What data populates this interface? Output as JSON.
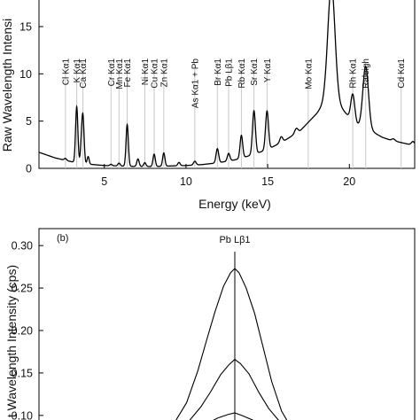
{
  "chart_data": [
    {
      "type": "line",
      "panel": "a",
      "xlabel": "Energy (keV)",
      "ylabel": "Raw Wavelength Intensi",
      "xlim": [
        1,
        24
      ],
      "ylim": [
        0,
        18
      ],
      "xticks": [
        5,
        10,
        15,
        20
      ],
      "yticks": [
        0,
        5,
        10,
        15
      ],
      "line_color": "#000000",
      "marker_color": "#c8c8c8",
      "element_lines": [
        {
          "label": "Cl Kα1",
          "energy": 2.62
        },
        {
          "label": "K Kα1",
          "energy": 3.31
        },
        {
          "label": "Ca Kα1",
          "energy": 3.69
        },
        {
          "label": "Cr Kα1",
          "energy": 5.41
        },
        {
          "label": "Mn Kα1",
          "energy": 5.9
        },
        {
          "label": "Fe Kα1",
          "energy": 6.4
        },
        {
          "label": "Ni Kα1",
          "energy": 7.48
        },
        {
          "label": "Cu Kα1",
          "energy": 8.05
        },
        {
          "label": "Zn Kα1",
          "energy": 8.64
        },
        {
          "label": "As Kα1 + Pb",
          "energy": 10.54
        },
        {
          "label": "Br Kα1",
          "energy": 11.92
        },
        {
          "label": "Pb Lβ1",
          "energy": 12.61
        },
        {
          "label": "Rb Kα1",
          "energy": 13.39
        },
        {
          "label": "Sr Kα1",
          "energy": 14.16
        },
        {
          "label": "Y Kα1",
          "energy": 14.96
        },
        {
          "label": "Mo Kα1",
          "energy": 17.48
        },
        {
          "label": "Rh Kα1",
          "energy": 20.21
        },
        {
          "label": "Raleigh",
          "energy": 21.0
        },
        {
          "label": "Cd Kα1",
          "energy": 23.17
        }
      ],
      "spectrum": {
        "baseline": [
          [
            1.0,
            1.7
          ],
          [
            1.5,
            1.4
          ],
          [
            2.0,
            1.1
          ],
          [
            2.5,
            0.9
          ],
          [
            3.0,
            0.7
          ],
          [
            4.0,
            0.45
          ],
          [
            5.0,
            0.3
          ],
          [
            6.0,
            0.25
          ],
          [
            7.0,
            0.2
          ],
          [
            8.0,
            0.2
          ],
          [
            9.0,
            0.25
          ],
          [
            10.0,
            0.3
          ],
          [
            11.0,
            0.4
          ],
          [
            12.0,
            0.6
          ],
          [
            13.0,
            0.9
          ],
          [
            14.0,
            1.4
          ],
          [
            15.0,
            2.0
          ],
          [
            16.0,
            2.9
          ],
          [
            17.0,
            4.0
          ],
          [
            18.0,
            5.8
          ],
          [
            18.5,
            7.0
          ],
          [
            19.0,
            7.4
          ],
          [
            19.5,
            6.4
          ],
          [
            20.0,
            5.4
          ],
          [
            20.5,
            4.6
          ],
          [
            21.0,
            4.2
          ],
          [
            21.5,
            3.8
          ],
          [
            22.0,
            3.3
          ],
          [
            22.5,
            3.0
          ],
          [
            23.0,
            2.8
          ],
          [
            23.5,
            2.6
          ],
          [
            24.0,
            2.4
          ]
        ],
        "peaks": [
          {
            "center": 2.62,
            "height": 0.2,
            "width": 0.07
          },
          {
            "center": 3.31,
            "height": 5.9,
            "width": 0.07
          },
          {
            "center": 3.59,
            "height": 1.4,
            "width": 0.06
          },
          {
            "center": 3.69,
            "height": 4.9,
            "width": 0.07
          },
          {
            "center": 4.01,
            "height": 0.8,
            "width": 0.06
          },
          {
            "center": 5.41,
            "height": 0.15,
            "width": 0.07
          },
          {
            "center": 5.9,
            "height": 0.3,
            "width": 0.07
          },
          {
            "center": 6.4,
            "height": 4.4,
            "width": 0.07
          },
          {
            "center": 7.06,
            "height": 0.8,
            "width": 0.07
          },
          {
            "center": 7.48,
            "height": 0.4,
            "width": 0.07
          },
          {
            "center": 8.05,
            "height": 1.3,
            "width": 0.07
          },
          {
            "center": 8.64,
            "height": 1.4,
            "width": 0.07
          },
          {
            "center": 9.57,
            "height": 0.35,
            "width": 0.07
          },
          {
            "center": 10.54,
            "height": 0.4,
            "width": 0.08
          },
          {
            "center": 11.92,
            "height": 1.5,
            "width": 0.08
          },
          {
            "center": 12.61,
            "height": 0.8,
            "width": 0.08
          },
          {
            "center": 13.39,
            "height": 2.4,
            "width": 0.08
          },
          {
            "center": 14.16,
            "height": 4.6,
            "width": 0.09
          },
          {
            "center": 14.96,
            "height": 4.1,
            "width": 0.09
          },
          {
            "center": 15.83,
            "height": 0.6,
            "width": 0.09
          },
          {
            "center": 16.75,
            "height": 0.5,
            "width": 0.1
          },
          {
            "center": 18.9,
            "height": 12.0,
            "width": 0.22
          },
          {
            "center": 20.21,
            "height": 2.8,
            "width": 0.12
          },
          {
            "center": 21.0,
            "height": 6.6,
            "width": 0.17
          },
          {
            "center": 22.7,
            "height": 0.2,
            "width": 0.1
          },
          {
            "center": 23.9,
            "height": 0.4,
            "width": 0.1
          }
        ]
      }
    },
    {
      "type": "line",
      "panel": "b",
      "panel_label": "(b)",
      "ylabel": "t Wavelength Intensity (cps)",
      "ylim": [
        0.08,
        0.32
      ],
      "yticks": [
        0.1,
        0.15,
        0.2,
        0.25,
        0.3
      ],
      "line_color": "#000000",
      "marker": {
        "label": "Pb Lβ1",
        "x": 0.5
      },
      "series": [
        {
          "values": [
            [
              0.0,
              0.085
            ],
            [
              0.08,
              0.093
            ],
            [
              0.16,
              0.115
            ],
            [
              0.24,
              0.153
            ],
            [
              0.3,
              0.188
            ],
            [
              0.36,
              0.222
            ],
            [
              0.42,
              0.252
            ],
            [
              0.47,
              0.268
            ],
            [
              0.5,
              0.273
            ],
            [
              0.53,
              0.268
            ],
            [
              0.58,
              0.25
            ],
            [
              0.64,
              0.22
            ],
            [
              0.7,
              0.18
            ],
            [
              0.76,
              0.14
            ],
            [
              0.83,
              0.105
            ],
            [
              0.9,
              0.085
            ],
            [
              1.0,
              0.078
            ]
          ]
        },
        {
          "values": [
            [
              0.0,
              0.08
            ],
            [
              0.1,
              0.083
            ],
            [
              0.18,
              0.094
            ],
            [
              0.26,
              0.11
            ],
            [
              0.33,
              0.128
            ],
            [
              0.4,
              0.148
            ],
            [
              0.46,
              0.16
            ],
            [
              0.5,
              0.166
            ],
            [
              0.54,
              0.161
            ],
            [
              0.6,
              0.149
            ],
            [
              0.67,
              0.127
            ],
            [
              0.74,
              0.108
            ],
            [
              0.82,
              0.092
            ],
            [
              0.9,
              0.084
            ],
            [
              1.0,
              0.08
            ]
          ]
        },
        {
          "values": [
            [
              0.0,
              0.078
            ],
            [
              0.2,
              0.082
            ],
            [
              0.3,
              0.09
            ],
            [
              0.38,
              0.097
            ],
            [
              0.45,
              0.101
            ],
            [
              0.5,
              0.103
            ],
            [
              0.55,
              0.1
            ],
            [
              0.62,
              0.095
            ],
            [
              0.7,
              0.089
            ],
            [
              0.8,
              0.083
            ],
            [
              1.0,
              0.079
            ]
          ]
        }
      ]
    }
  ]
}
